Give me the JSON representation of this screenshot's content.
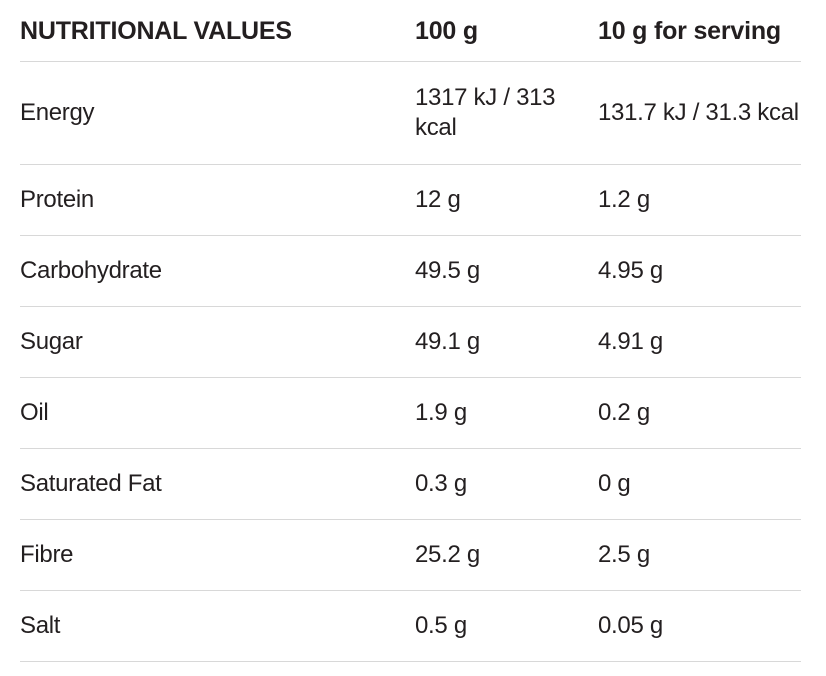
{
  "table": {
    "title": "NUTRITIONAL VALUES",
    "header": {
      "col_label": "NUTRITIONAL VALUES",
      "col_per100": "100 g",
      "col_serving": "10 g for serving"
    },
    "rows": [
      {
        "label": "Energy",
        "per100": "1317 kJ / 313 kcal",
        "serving": "131.7 kJ / 31.3 kcal"
      },
      {
        "label": "Protein",
        "per100": "12 g",
        "serving": "1.2 g"
      },
      {
        "label": "Carbohydrate",
        "per100": "49.5 g",
        "serving": "4.95 g"
      },
      {
        "label": "Sugar",
        "per100": "49.1 g",
        "serving": "4.91 g"
      },
      {
        "label": "Oil",
        "per100": "1.9 g",
        "serving": "0.2 g"
      },
      {
        "label": "Saturated Fat",
        "per100": "0.3 g",
        "serving": "0 g"
      },
      {
        "label": "Fibre",
        "per100": "25.2 g",
        "serving": "2.5 g"
      },
      {
        "label": "Salt",
        "per100": "0.5 g",
        "serving": "0.05 g"
      }
    ],
    "colors": {
      "text": "#231f20",
      "divider": "#d8d8d8",
      "background": "#ffffff"
    }
  }
}
